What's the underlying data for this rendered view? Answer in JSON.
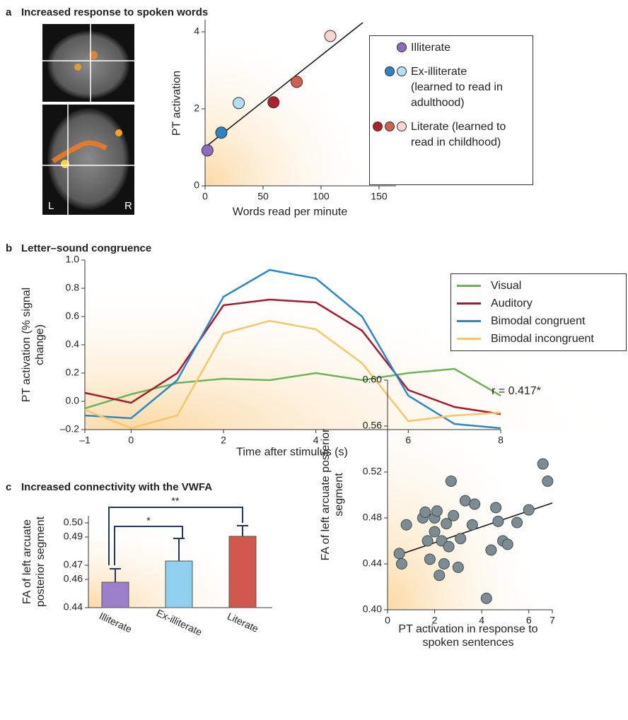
{
  "chart_data": [
    {
      "type": "scatter",
      "panel": "a",
      "title": "Increased response to spoken words",
      "image_labels": [
        "L",
        "R"
      ],
      "x_label": "Words read per minute",
      "y_label": "PT activation",
      "xlim": [
        0,
        150
      ],
      "ylim": [
        0,
        4.3
      ],
      "xticks": [
        0,
        50,
        100,
        150
      ],
      "yticks": [
        0,
        2,
        4
      ],
      "series": [
        {
          "name": "Illiterate",
          "colors": [
            "#8d6cc0"
          ],
          "x": [
            2
          ],
          "values": [
            0.92
          ]
        },
        {
          "name": "Ex-illiterate (learned to read in adulthood)",
          "colors": [
            "#2e82c6",
            "#b3def3"
          ],
          "x": [
            14,
            29
          ],
          "values": [
            1.38,
            2.15
          ]
        },
        {
          "name": "Literate (learned to read in childhood)",
          "colors": [
            "#b0202c",
            "#d2604f",
            "#f7d6cf"
          ],
          "x": [
            59,
            79,
            108
          ],
          "values": [
            2.17,
            2.7,
            3.89
          ]
        }
      ],
      "fit": {
        "x": [
          0,
          136
        ],
        "values": [
          1.0,
          4.24
        ]
      }
    },
    {
      "type": "line",
      "panel": "b",
      "title": "Letter–sound congruence",
      "x_label": "Time after stimulus (s)",
      "y_label": "PT activation (% signal change)",
      "xlim": [
        -1,
        8
      ],
      "ylim": [
        -0.2,
        1
      ],
      "xticks": [
        {
          "value": -1,
          "label": "–1"
        },
        0,
        2,
        4,
        6,
        8
      ],
      "yticks": [
        {
          "value": 1,
          "label": "1.0"
        },
        0.8,
        0.6,
        0.4,
        0.2,
        {
          "value": 0,
          "label": "0.0"
        },
        {
          "value": -0.2,
          "label": "–0.2"
        }
      ],
      "x": [
        -1,
        0,
        1,
        2,
        3,
        4,
        5,
        6,
        7,
        8
      ],
      "series": [
        {
          "name": "Visual",
          "color": "#6db35b",
          "values": [
            -0.05,
            0.05,
            0.13,
            0.16,
            0.15,
            0.2,
            0.15,
            0.2,
            0.23,
            0.04
          ]
        },
        {
          "name": "Auditory",
          "color": "#a7192e",
          "values": [
            0.06,
            -0.01,
            0.2,
            0.68,
            0.72,
            0.7,
            0.5,
            0.08,
            -0.04,
            -0.09
          ]
        },
        {
          "name": "Bimodal congruent",
          "color": "#2b87c8",
          "values": [
            -0.1,
            -0.12,
            0.15,
            0.74,
            0.93,
            0.87,
            0.6,
            0.04,
            -0.16,
            -0.19
          ]
        },
        {
          "name": "Bimodal incongruent",
          "color": "#f7c56a",
          "values": [
            -0.06,
            -0.19,
            -0.1,
            0.48,
            0.57,
            0.51,
            0.27,
            -0.14,
            -0.1,
            -0.08
          ]
        }
      ]
    },
    {
      "type": "bar",
      "panel": "c",
      "title": "Increased connectivity with the VWFA",
      "y_label": "FA of left arcuate posterior segment",
      "ylim": [
        0.44,
        0.5
      ],
      "yticks": [
        0.44,
        0.46,
        0.47,
        0.49,
        {
          "value": 0.5,
          "label": "0.50"
        }
      ],
      "categories": [
        "Illiterate",
        "Ex-illiterate",
        "Literate"
      ],
      "values": [
        0.458,
        0.473,
        0.4905
      ],
      "errors": [
        0.0095,
        0.016,
        0.0075
      ],
      "colors": [
        "#9b7fc9",
        "#8fd0ee",
        "#d0574d"
      ],
      "error_color": "#1f3a5f",
      "annotations": [
        "**",
        "*"
      ]
    },
    {
      "type": "scatter",
      "x_label": "PT activation in response to spoken sentences",
      "y_label": "FA of left arcuate posterior segment",
      "annotation": "r = 0.417*",
      "xlim": [
        0,
        7
      ],
      "ylim": [
        0.4,
        0.6
      ],
      "xticks": [
        0,
        2,
        4,
        6,
        7
      ],
      "yticks": [
        {
          "value": 0.4,
          "label": "0.40"
        },
        0.44,
        0.48,
        0.52,
        0.56,
        {
          "value": 0.6,
          "label": "0.60"
        }
      ],
      "color": "#7d8c93",
      "x": [
        0.5,
        0.6,
        0.8,
        1.5,
        1.6,
        1.7,
        1.8,
        2.0,
        2.0,
        2.1,
        2.2,
        2.3,
        2.4,
        2.5,
        2.6,
        2.7,
        2.8,
        3.0,
        3.1,
        3.3,
        3.6,
        3.7,
        4.2,
        4.4,
        4.6,
        4.7,
        4.9,
        5.1,
        5.5,
        6.0,
        6.6,
        6.8
      ],
      "values": [
        0.449,
        0.44,
        0.474,
        0.48,
        0.485,
        0.46,
        0.444,
        0.468,
        0.48,
        0.486,
        0.43,
        0.46,
        0.44,
        0.475,
        0.455,
        0.512,
        0.482,
        0.437,
        0.462,
        0.495,
        0.474,
        0.492,
        0.41,
        0.452,
        0.489,
        0.477,
        0.46,
        0.457,
        0.476,
        0.487,
        0.527,
        0.512
      ],
      "fit": {
        "x": [
          0.5,
          7
        ],
        "values": [
          0.448,
          0.493
        ]
      }
    }
  ]
}
